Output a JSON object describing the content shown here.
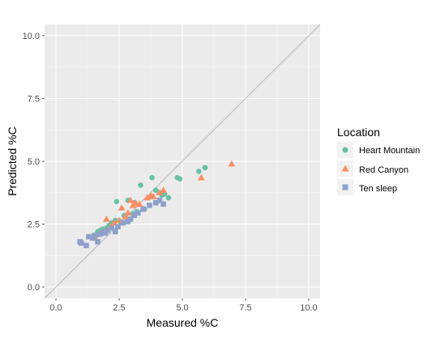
{
  "chart_data": {
    "type": "scatter",
    "xlabel": "Measured %C",
    "ylabel": "Predicted %C",
    "xlim": [
      -0.45,
      10.45
    ],
    "ylim": [
      -0.45,
      10.45
    ],
    "x_ticks": [
      "0.0",
      "2.5",
      "5.0",
      "7.5",
      "10.0"
    ],
    "y_ticks": [
      "0.0",
      "2.5",
      "5.0",
      "7.5",
      "10.0"
    ],
    "x_tick_values": [
      0,
      2.5,
      5,
      7.5,
      10
    ],
    "y_tick_values": [
      0,
      2.5,
      5,
      7.5,
      10
    ],
    "reference_line": "y = x",
    "grid": true,
    "legend_title": "Location",
    "legend_position": "right",
    "series": [
      {
        "name": "Heart Mountain",
        "color": "#66c2a5",
        "marker": "circle",
        "points": [
          [
            1.5,
            2.05
          ],
          [
            1.65,
            2.2
          ],
          [
            1.75,
            2.25
          ],
          [
            1.85,
            2.3
          ],
          [
            2.0,
            2.35
          ],
          [
            2.1,
            2.45
          ],
          [
            2.2,
            2.55
          ],
          [
            2.35,
            2.65
          ],
          [
            2.4,
            3.4
          ],
          [
            2.55,
            2.6
          ],
          [
            2.7,
            2.85
          ],
          [
            2.85,
            3.45
          ],
          [
            3.05,
            2.9
          ],
          [
            3.1,
            3.35
          ],
          [
            3.2,
            3.0
          ],
          [
            3.35,
            4.05
          ],
          [
            3.5,
            3.1
          ],
          [
            3.65,
            3.55
          ],
          [
            3.8,
            4.35
          ],
          [
            3.95,
            3.85
          ],
          [
            4.1,
            3.75
          ],
          [
            4.2,
            3.65
          ],
          [
            4.3,
            3.7
          ],
          [
            4.45,
            3.55
          ],
          [
            4.8,
            4.35
          ],
          [
            4.9,
            4.3
          ],
          [
            5.65,
            4.6
          ],
          [
            5.9,
            4.75
          ]
        ]
      },
      {
        "name": "Red Canyon",
        "color": "#fc8d62",
        "marker": "triangle",
        "points": [
          [
            1.55,
            1.95
          ],
          [
            1.7,
            2.1
          ],
          [
            1.8,
            2.15
          ],
          [
            1.95,
            2.25
          ],
          [
            2.0,
            2.7
          ],
          [
            2.15,
            2.4
          ],
          [
            2.3,
            2.55
          ],
          [
            2.5,
            2.65
          ],
          [
            2.6,
            3.15
          ],
          [
            2.75,
            2.8
          ],
          [
            2.85,
            2.95
          ],
          [
            2.95,
            3.45
          ],
          [
            3.05,
            3.25
          ],
          [
            3.15,
            3.35
          ],
          [
            3.3,
            3.3
          ],
          [
            3.45,
            3.1
          ],
          [
            3.6,
            3.55
          ],
          [
            3.75,
            3.65
          ],
          [
            3.85,
            3.6
          ],
          [
            4.1,
            3.75
          ],
          [
            4.25,
            3.85
          ],
          [
            5.75,
            4.35
          ],
          [
            6.95,
            4.9
          ]
        ]
      },
      {
        "name": "Ten sleep",
        "color": "#8da0cb",
        "marker": "square",
        "points": [
          [
            0.95,
            1.8
          ],
          [
            1.0,
            1.75
          ],
          [
            1.2,
            1.65
          ],
          [
            1.3,
            2.0
          ],
          [
            1.45,
            1.95
          ],
          [
            1.55,
            2.05
          ],
          [
            1.65,
            1.8
          ],
          [
            1.75,
            2.1
          ],
          [
            1.85,
            2.2
          ],
          [
            1.95,
            2.15
          ],
          [
            2.05,
            2.25
          ],
          [
            2.2,
            2.35
          ],
          [
            2.35,
            2.2
          ],
          [
            2.45,
            2.4
          ],
          [
            2.65,
            2.55
          ],
          [
            2.85,
            2.6
          ],
          [
            2.95,
            2.7
          ],
          [
            3.1,
            2.85
          ],
          [
            3.25,
            2.95
          ],
          [
            3.45,
            3.1
          ],
          [
            3.7,
            3.25
          ],
          [
            3.95,
            3.35
          ],
          [
            4.1,
            3.45
          ],
          [
            4.25,
            3.3
          ]
        ]
      }
    ]
  }
}
